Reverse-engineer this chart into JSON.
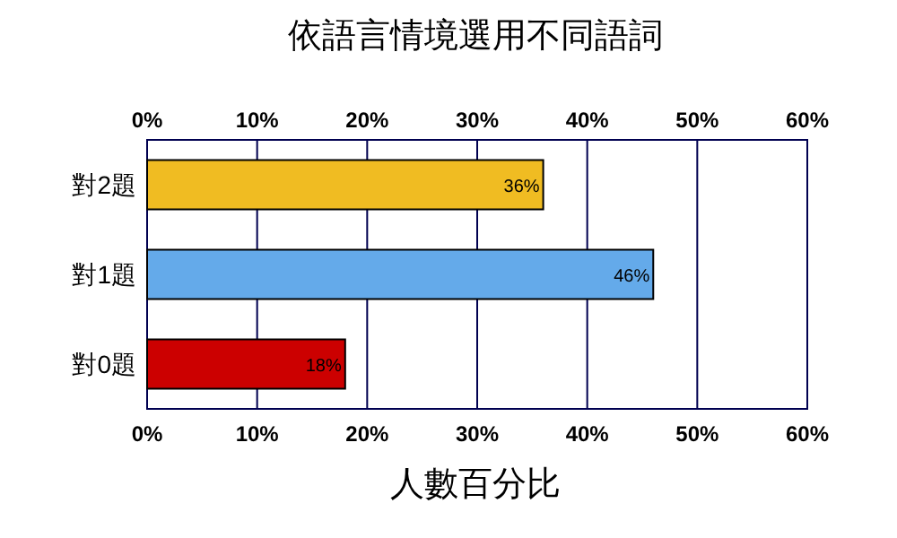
{
  "chart_data": {
    "type": "bar",
    "orientation": "horizontal",
    "title": "依語言情境選用不同語詞",
    "xlabel": "人數百分比",
    "categories": [
      "對2題",
      "對1題",
      "對0題"
    ],
    "values": [
      36,
      46,
      18
    ],
    "colors": [
      "#f0bc22",
      "#64aaea",
      "#cc0000"
    ],
    "value_labels": [
      "36%",
      "46%",
      "18%"
    ],
    "xlim": [
      0,
      60
    ],
    "xticks": [
      {
        "value": 0,
        "label": "0%"
      },
      {
        "value": 10,
        "label": "10%"
      },
      {
        "value": 20,
        "label": "20%"
      },
      {
        "value": 30,
        "label": "30%"
      },
      {
        "value": 40,
        "label": "40%"
      },
      {
        "value": 50,
        "label": "50%"
      },
      {
        "value": 60,
        "label": "60%"
      }
    ],
    "x2lim": [
      0,
      60
    ],
    "x2ticks": [
      {
        "value": 0,
        "label": "0%"
      },
      {
        "value": 10,
        "label": "10%"
      },
      {
        "value": 20,
        "label": "20%"
      },
      {
        "value": 30,
        "label": "30%"
      },
      {
        "value": 40,
        "label": "40%"
      },
      {
        "value": 50,
        "label": "50%"
      },
      {
        "value": 60,
        "label": "60%"
      }
    ],
    "grid": "x"
  }
}
